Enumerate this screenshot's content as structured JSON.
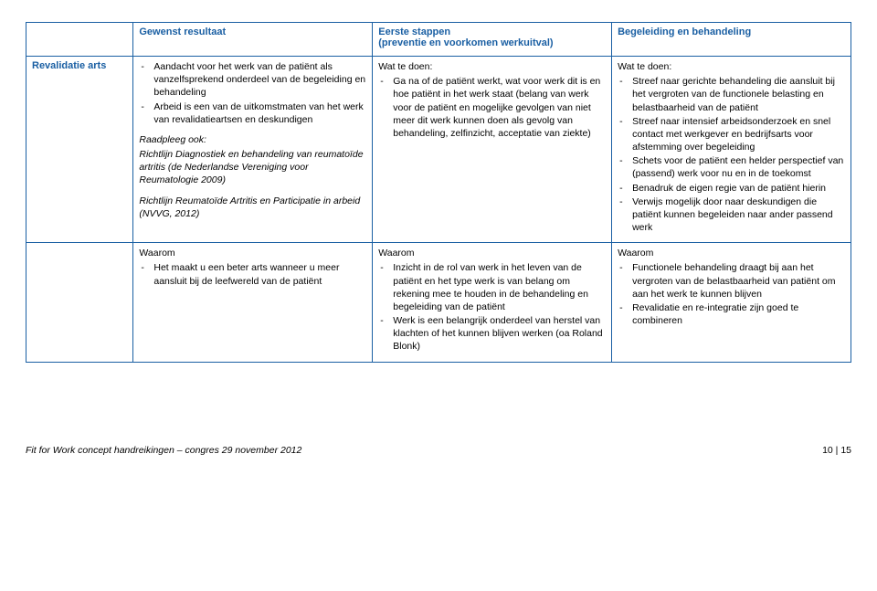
{
  "headers": {
    "col0": "",
    "col1": "Gewenst resultaat",
    "col2": "Eerste stappen\n(preventie en voorkomen werkuitval)",
    "col3": "Begeleiding en behandeling"
  },
  "rowLabel": "Revalidatie arts",
  "row1": {
    "c1": {
      "items": [
        "Aandacht voor het werk van de patiënt als vanzelfsprekend onderdeel van de begeleiding en behandeling",
        "Arbeid is een van de uitkomstmaten van het werk van revalidatieartsen en deskundigen"
      ],
      "ref1_lead": "Raadpleeg ook:",
      "ref1": "Richtlijn Diagnostiek en behandeling van reumatoïde artritis (de Nederlandse Vereniging voor Reumatologie 2009)",
      "ref2": "Richtlijn Reumatoïde Artritis en Participatie in arbeid (NVVG, 2012)"
    },
    "c2": {
      "lead": "Wat te doen:",
      "items": [
        "Ga na of de patiënt werkt, wat voor werk dit is en hoe patiënt in het werk staat (belang van werk voor de patiënt en mogelijke gevolgen van niet meer dit werk kunnen doen als gevolg van behandeling, zelfinzicht, acceptatie van ziekte)"
      ]
    },
    "c3": {
      "lead": "Wat te doen:",
      "items": [
        "Streef naar gerichte behandeling die aansluit bij het vergroten van de functionele belasting en belastbaarheid van de patiënt",
        "Streef naar intensief arbeidsonderzoek en snel contact met werkgever en bedrijfsarts voor afstemming over begeleiding",
        "Schets voor de patiënt een helder perspectief van (passend) werk voor nu en in de toekomst",
        "Benadruk de eigen regie van de patiënt hierin",
        "Verwijs mogelijk door naar deskundigen die patiënt kunnen begeleiden naar ander passend werk"
      ]
    }
  },
  "row2": {
    "c1": {
      "lead": "Waarom",
      "items": [
        "Het maakt u een beter arts wanneer u meer aansluit bij de leefwereld van de patiënt"
      ]
    },
    "c2": {
      "lead": "Waarom",
      "items": [
        "Inzicht in de rol van werk in het leven van de patiënt en het type werk is van belang om rekening mee te houden in de behandeling en begeleiding van de patiënt",
        "Werk is een belangrijk onderdeel van herstel van klachten of het kunnen blijven werken (oa Roland Blonk)"
      ]
    },
    "c3": {
      "lead": "Waarom",
      "items": [
        "Functionele behandeling draagt bij aan het vergroten van de belastbaarheid van patiënt om aan het werk te kunnen blijven",
        "Revalidatie en re-integratie zijn goed te combineren"
      ]
    }
  },
  "footer": {
    "left": "Fit for Work concept handreikingen – congres 29 november 2012",
    "right": "10 | 15"
  }
}
